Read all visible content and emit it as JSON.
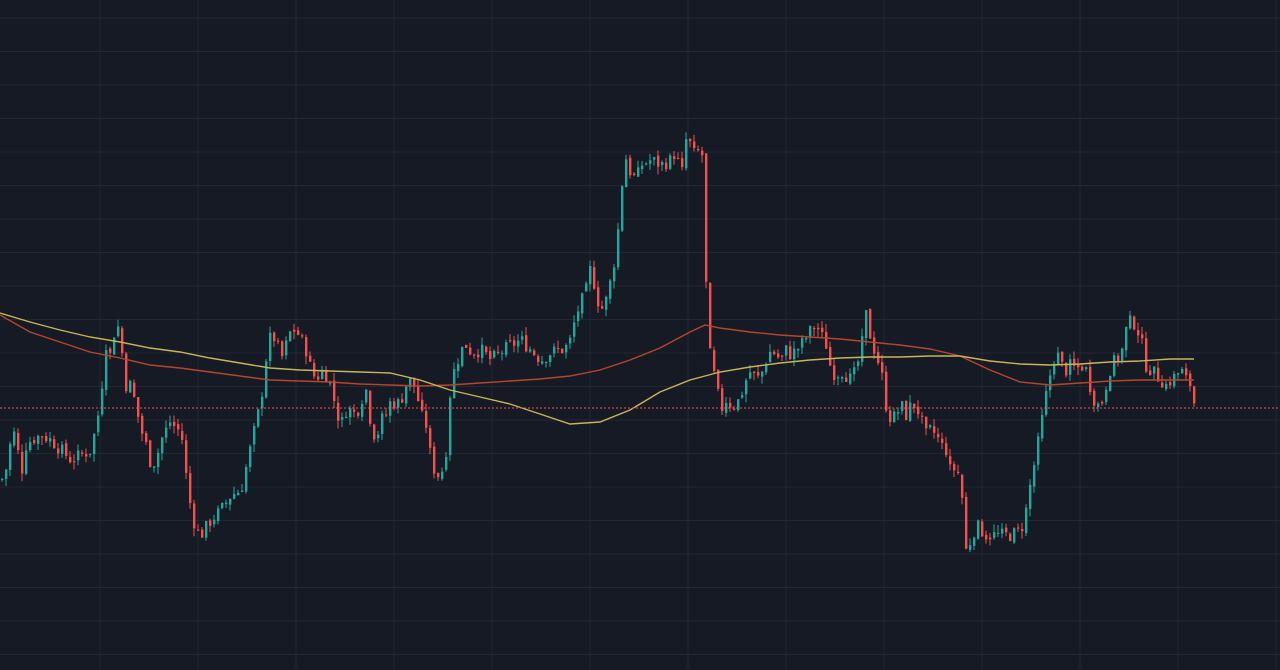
{
  "chart_data": {
    "type": "candlestick",
    "title": "",
    "xlabel": "",
    "ylabel": "",
    "grid": true,
    "ylim": [
      0,
      670
    ],
    "colors": {
      "background": "#161a25",
      "grid": "#232735",
      "up": "#26a69a",
      "down": "#ef5350",
      "ma_fast": "#b5462c",
      "ma_slow": "#c9b458",
      "last_price_line": "#ef5350"
    },
    "last_price": 262,
    "close_anchors": [
      [
        0,
        190
      ],
      [
        4,
        195
      ],
      [
        8,
        220
      ],
      [
        12,
        240
      ],
      [
        16,
        225
      ],
      [
        20,
        195
      ],
      [
        25,
        225
      ],
      [
        30,
        230
      ],
      [
        40,
        235
      ],
      [
        50,
        230
      ],
      [
        60,
        220
      ],
      [
        70,
        210
      ],
      [
        80,
        215
      ],
      [
        90,
        220
      ],
      [
        100,
        270
      ],
      [
        103,
        320
      ],
      [
        106,
        330
      ],
      [
        110,
        310
      ],
      [
        115,
        355
      ],
      [
        120,
        325
      ],
      [
        125,
        285
      ],
      [
        130,
        285
      ],
      [
        140,
        240
      ],
      [
        145,
        225
      ],
      [
        150,
        205
      ],
      [
        155,
        210
      ],
      [
        160,
        230
      ],
      [
        170,
        250
      ],
      [
        175,
        240
      ],
      [
        180,
        240
      ],
      [
        185,
        195
      ],
      [
        190,
        160
      ],
      [
        195,
        140
      ],
      [
        200,
        135
      ],
      [
        210,
        150
      ],
      [
        220,
        160
      ],
      [
        230,
        175
      ],
      [
        240,
        180
      ],
      [
        250,
        225
      ],
      [
        260,
        270
      ],
      [
        266,
        320
      ],
      [
        270,
        335
      ],
      [
        275,
        330
      ],
      [
        280,
        310
      ],
      [
        285,
        325
      ],
      [
        290,
        340
      ],
      [
        295,
        340
      ],
      [
        300,
        330
      ],
      [
        305,
        320
      ],
      [
        310,
        300
      ],
      [
        315,
        290
      ],
      [
        320,
        300
      ],
      [
        325,
        295
      ],
      [
        330,
        285
      ],
      [
        335,
        260
      ],
      [
        340,
        245
      ],
      [
        345,
        260
      ],
      [
        350,
        260
      ],
      [
        355,
        255
      ],
      [
        360,
        270
      ],
      [
        365,
        280
      ],
      [
        370,
        245
      ],
      [
        375,
        230
      ],
      [
        380,
        250
      ],
      [
        385,
        255
      ],
      [
        390,
        270
      ],
      [
        395,
        265
      ],
      [
        400,
        270
      ],
      [
        405,
        285
      ],
      [
        410,
        290
      ],
      [
        415,
        280
      ],
      [
        420,
        255
      ],
      [
        425,
        245
      ],
      [
        430,
        210
      ],
      [
        435,
        195
      ],
      [
        440,
        195
      ],
      [
        445,
        220
      ],
      [
        450,
        290
      ],
      [
        455,
        305
      ],
      [
        460,
        320
      ],
      [
        465,
        325
      ],
      [
        470,
        318
      ],
      [
        480,
        320
      ],
      [
        490,
        310
      ],
      [
        500,
        318
      ],
      [
        510,
        325
      ],
      [
        520,
        330
      ],
      [
        530,
        320
      ],
      [
        540,
        310
      ],
      [
        550,
        318
      ],
      [
        560,
        320
      ],
      [
        568,
        325
      ],
      [
        575,
        355
      ],
      [
        585,
        380
      ],
      [
        590,
        405
      ],
      [
        595,
        375
      ],
      [
        600,
        360
      ],
      [
        605,
        370
      ],
      [
        612,
        400
      ],
      [
        617,
        440
      ],
      [
        620,
        470
      ],
      [
        623,
        520
      ],
      [
        628,
        500
      ],
      [
        635,
        490
      ],
      [
        640,
        505
      ],
      [
        650,
        510
      ],
      [
        660,
        505
      ],
      [
        670,
        510
      ],
      [
        675,
        520
      ],
      [
        680,
        490
      ],
      [
        685,
        530
      ],
      [
        690,
        525
      ],
      [
        695,
        510
      ],
      [
        700,
        530
      ],
      [
        702,
        500
      ],
      [
        704,
        420
      ],
      [
        706,
        350
      ],
      [
        708,
        320
      ],
      [
        712,
        300
      ],
      [
        716,
        280
      ],
      [
        720,
        260
      ],
      [
        725,
        270
      ],
      [
        730,
        265
      ],
      [
        735,
        265
      ],
      [
        740,
        275
      ],
      [
        745,
        290
      ],
      [
        750,
        300
      ],
      [
        755,
        290
      ],
      [
        760,
        295
      ],
      [
        765,
        310
      ],
      [
        770,
        320
      ],
      [
        775,
        315
      ],
      [
        780,
        310
      ],
      [
        785,
        320
      ],
      [
        790,
        315
      ],
      [
        795,
        320
      ],
      [
        800,
        325
      ],
      [
        810,
        340
      ],
      [
        815,
        345
      ],
      [
        820,
        335
      ],
      [
        825,
        325
      ],
      [
        830,
        300
      ],
      [
        835,
        295
      ],
      [
        840,
        300
      ],
      [
        845,
        295
      ],
      [
        850,
        290
      ],
      [
        855,
        300
      ],
      [
        860,
        320
      ],
      [
        865,
        355
      ],
      [
        870,
        330
      ],
      [
        875,
        315
      ],
      [
        880,
        300
      ],
      [
        885,
        265
      ],
      [
        890,
        250
      ],
      [
        895,
        255
      ],
      [
        900,
        265
      ],
      [
        905,
        255
      ],
      [
        910,
        265
      ],
      [
        915,
        265
      ],
      [
        920,
        250
      ],
      [
        925,
        235
      ],
      [
        930,
        240
      ],
      [
        935,
        235
      ],
      [
        940,
        225
      ],
      [
        945,
        220
      ],
      [
        950,
        195
      ],
      [
        955,
        205
      ],
      [
        960,
        185
      ],
      [
        962,
        160
      ],
      [
        965,
        120
      ],
      [
        970,
        130
      ],
      [
        975,
        145
      ],
      [
        980,
        140
      ],
      [
        985,
        135
      ],
      [
        990,
        135
      ],
      [
        1000,
        135
      ],
      [
        1010,
        135
      ],
      [
        1020,
        140
      ],
      [
        1025,
        160
      ],
      [
        1030,
        190
      ],
      [
        1035,
        215
      ],
      [
        1040,
        245
      ],
      [
        1045,
        275
      ],
      [
        1050,
        300
      ],
      [
        1055,
        320
      ],
      [
        1060,
        305
      ],
      [
        1065,
        300
      ],
      [
        1070,
        305
      ],
      [
        1075,
        300
      ],
      [
        1080,
        305
      ],
      [
        1085,
        300
      ],
      [
        1090,
        280
      ],
      [
        1095,
        265
      ],
      [
        1100,
        265
      ],
      [
        1105,
        285
      ],
      [
        1110,
        305
      ],
      [
        1115,
        310
      ],
      [
        1120,
        315
      ],
      [
        1125,
        340
      ],
      [
        1130,
        350
      ],
      [
        1135,
        345
      ],
      [
        1140,
        330
      ],
      [
        1145,
        305
      ],
      [
        1150,
        300
      ],
      [
        1155,
        295
      ],
      [
        1160,
        290
      ],
      [
        1165,
        285
      ],
      [
        1170,
        290
      ],
      [
        1175,
        295
      ],
      [
        1180,
        300
      ],
      [
        1185,
        290
      ],
      [
        1190,
        285
      ],
      [
        1194,
        262
      ]
    ],
    "ma_fast_anchors": [
      [
        0,
        355
      ],
      [
        30,
        338
      ],
      [
        60,
        328
      ],
      [
        90,
        318
      ],
      [
        120,
        312
      ],
      [
        150,
        305
      ],
      [
        180,
        302
      ],
      [
        210,
        298
      ],
      [
        240,
        294
      ],
      [
        270,
        290
      ],
      [
        300,
        289
      ],
      [
        330,
        288
      ],
      [
        360,
        286
      ],
      [
        390,
        285
      ],
      [
        420,
        284
      ],
      [
        450,
        285
      ],
      [
        480,
        287
      ],
      [
        510,
        289
      ],
      [
        540,
        291
      ],
      [
        570,
        294
      ],
      [
        600,
        300
      ],
      [
        630,
        310
      ],
      [
        660,
        322
      ],
      [
        690,
        338
      ],
      [
        705,
        345
      ],
      [
        720,
        342
      ],
      [
        750,
        338
      ],
      [
        780,
        335
      ],
      [
        810,
        333
      ],
      [
        840,
        331
      ],
      [
        870,
        328
      ],
      [
        900,
        325
      ],
      [
        930,
        321
      ],
      [
        960,
        314
      ],
      [
        990,
        300
      ],
      [
        1020,
        288
      ],
      [
        1050,
        285
      ],
      [
        1080,
        287
      ],
      [
        1110,
        289
      ],
      [
        1140,
        290
      ],
      [
        1170,
        290
      ],
      [
        1194,
        290
      ]
    ],
    "ma_slow_anchors": [
      [
        0,
        357
      ],
      [
        30,
        348
      ],
      [
        60,
        340
      ],
      [
        90,
        333
      ],
      [
        120,
        328
      ],
      [
        150,
        322
      ],
      [
        180,
        318
      ],
      [
        210,
        312
      ],
      [
        240,
        307
      ],
      [
        270,
        302
      ],
      [
        300,
        300
      ],
      [
        330,
        299
      ],
      [
        360,
        298
      ],
      [
        390,
        297
      ],
      [
        420,
        290
      ],
      [
        450,
        280
      ],
      [
        480,
        273
      ],
      [
        510,
        266
      ],
      [
        540,
        256
      ],
      [
        570,
        246
      ],
      [
        600,
        248
      ],
      [
        630,
        260
      ],
      [
        660,
        278
      ],
      [
        690,
        290
      ],
      [
        720,
        298
      ],
      [
        750,
        303
      ],
      [
        780,
        307
      ],
      [
        810,
        310
      ],
      [
        840,
        312
      ],
      [
        870,
        313
      ],
      [
        900,
        313
      ],
      [
        930,
        314
      ],
      [
        960,
        314
      ],
      [
        990,
        309
      ],
      [
        1020,
        306
      ],
      [
        1050,
        305
      ],
      [
        1080,
        306
      ],
      [
        1110,
        308
      ],
      [
        1140,
        309
      ],
      [
        1170,
        311
      ],
      [
        1194,
        311
      ]
    ],
    "candle_spacing": 4,
    "first_candle_x": 1
  }
}
